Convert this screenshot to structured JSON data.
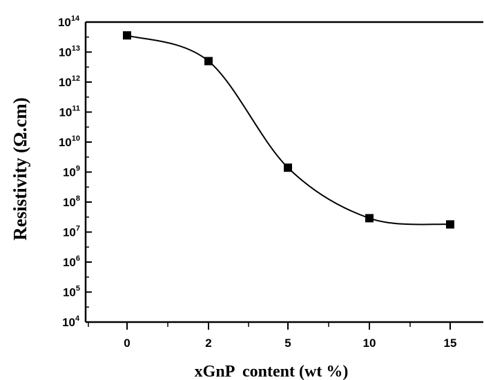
{
  "chart_data": {
    "type": "scatter",
    "title": "",
    "xlabel": "xGnP  content (wt %)",
    "ylabel": "Resistivity (Ω.cm)",
    "y_scale": "log",
    "ylim": [
      10000,
      100000000000000
    ],
    "x_categories": [
      "0",
      "2",
      "5",
      "10",
      "15"
    ],
    "series": [
      {
        "marker": "square",
        "fit_line": "smooth",
        "points": [
          {
            "x": "0",
            "y": 36000000000000
          },
          {
            "x": "2",
            "y": 5000000000000
          },
          {
            "x": "5",
            "y": 1400000000
          },
          {
            "x": "10",
            "y": 29000000
          },
          {
            "x": "15",
            "y": 18000000
          }
        ]
      }
    ],
    "y_ticks": [
      {
        "base": "10",
        "exp": "4"
      },
      {
        "base": "10",
        "exp": "5"
      },
      {
        "base": "10",
        "exp": "6"
      },
      {
        "base": "10",
        "exp": "7"
      },
      {
        "base": "10",
        "exp": "8"
      },
      {
        "base": "10",
        "exp": "9"
      },
      {
        "base": "10",
        "exp": "10"
      },
      {
        "base": "10",
        "exp": "11"
      },
      {
        "base": "10",
        "exp": "12"
      },
      {
        "base": "10",
        "exp": "13"
      },
      {
        "base": "10",
        "exp": "14"
      }
    ],
    "colors": {
      "marker": "#000000",
      "line": "#000000",
      "axes": "#000000"
    }
  }
}
